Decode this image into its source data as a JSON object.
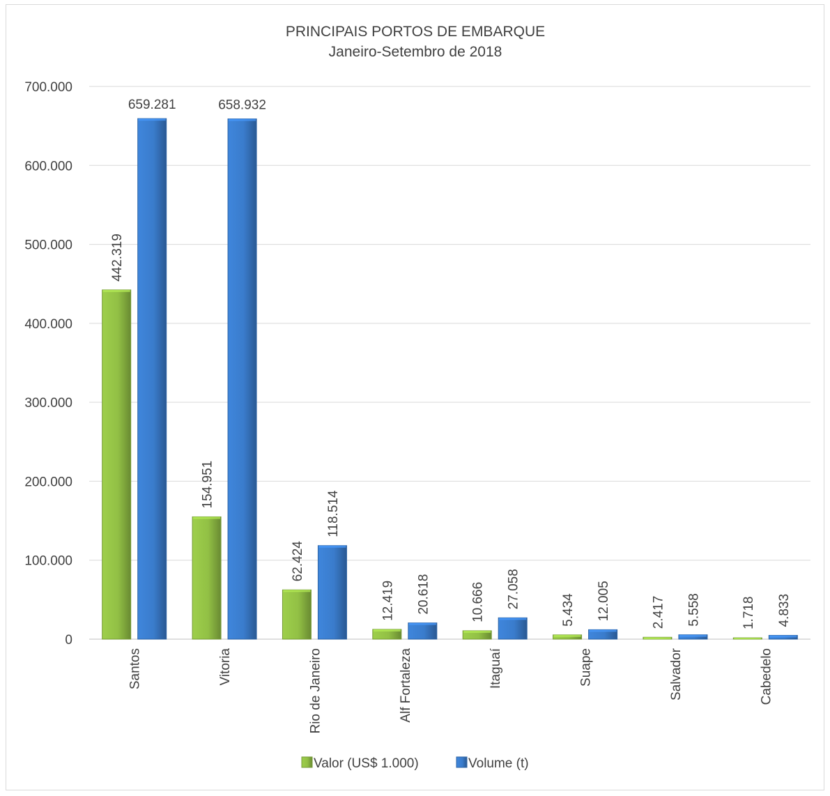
{
  "chart_data": {
    "type": "bar",
    "title": "PRINCIPAIS PORTOS DE EMBARQUE",
    "subtitle": "Janeiro-Setembro de 2018",
    "categories": [
      "Santos",
      "Vitoria",
      "Rio de Janeiro",
      "Alf Fortaleza",
      "Itaguaí",
      "Suape",
      "Salvador",
      "Cabedelo"
    ],
    "series": [
      {
        "name": "Valor (US$ 1.000)",
        "color": "#92c045",
        "values": [
          442319,
          154951,
          62424,
          12419,
          10666,
          5434,
          2417,
          1718
        ],
        "labels": [
          "442.319",
          "154.951",
          "62.424",
          "12.419",
          "10.666",
          "5.434",
          "2.417",
          "1.718"
        ]
      },
      {
        "name": "Volume (t)",
        "color": "#3a7ccc",
        "values": [
          659281,
          658932,
          118514,
          20618,
          27058,
          12005,
          5558,
          4833
        ],
        "labels": [
          "659.281",
          "658.932",
          "118.514",
          "20.618",
          "27.058",
          "12.005",
          "5.558",
          "4.833"
        ]
      }
    ],
    "ylim": [
      0,
      700000
    ],
    "yticks": [
      0,
      100000,
      200000,
      300000,
      400000,
      500000,
      600000,
      700000
    ],
    "ytick_labels": [
      "0",
      "100.000",
      "200.000",
      "300.000",
      "400.000",
      "500.000",
      "600.000",
      "700.000"
    ],
    "grid": true,
    "legend_position": "bottom",
    "category_label_orientation": "vertical",
    "data_label_orientation": "vertical"
  }
}
